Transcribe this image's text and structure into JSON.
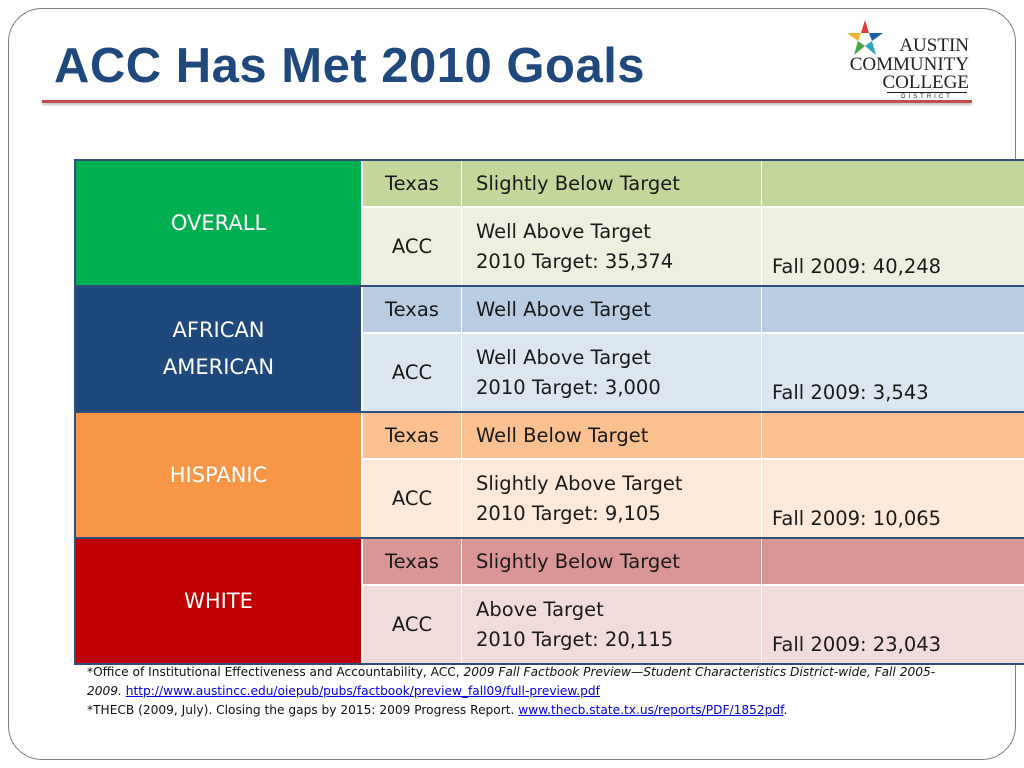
{
  "title": "ACC Has Met 2010 Goals",
  "logo": {
    "line1": "AUSTIN",
    "line2": "COMMUNITY",
    "line3": "COLLEGE",
    "line4": "DISTRICT",
    "colors": {
      "star_red": "#e03a3e",
      "star_blue": "#1f5fa8",
      "star_teal": "#2aa6b8",
      "star_green": "#4aa84a",
      "star_gold": "#f2b233"
    }
  },
  "table": {
    "groups": [
      {
        "category": "OVERALL",
        "category_color": "#00b050",
        "texas_bg": "#c4d79b",
        "acc_bg": "#ebf1de",
        "texas": {
          "kind": "Texas",
          "status": "Slightly Below Target",
          "fall": ""
        },
        "acc": {
          "kind": "ACC",
          "status": "Well Above Target",
          "target": "2010 Target: 35,374",
          "fall": "Fall 2009: 40,248"
        }
      },
      {
        "category": "AFRICAN AMERICAN",
        "category_color": "#1f497d",
        "texas_bg": "#b8cce4",
        "acc_bg": "#dce6f1",
        "texas": {
          "kind": "Texas",
          "status": "Well Above Target",
          "fall": ""
        },
        "acc": {
          "kind": "ACC",
          "status": "Well Above Target",
          "target": "2010 Target: 3,000",
          "fall": "Fall 2009: 3,543"
        }
      },
      {
        "category": "HISPANIC",
        "category_color": "#f79646",
        "texas_bg": "#fac090",
        "acc_bg": "#fde9d9",
        "texas": {
          "kind": "Texas",
          "status": "Well Below Target",
          "fall": ""
        },
        "acc": {
          "kind": "ACC",
          "status": "Slightly Above Target",
          "target": "2010 Target: 9,105",
          "fall": "Fall 2009: 10,065"
        }
      },
      {
        "category": "WHITE",
        "category_color": "#c00000",
        "texas_bg": "#da9694",
        "acc_bg": "#f2dcdb",
        "texas": {
          "kind": "Texas",
          "status": "Slightly Below Target",
          "fall": ""
        },
        "acc": {
          "kind": "ACC",
          "status": "Above Target",
          "target": "2010 Target: 20,115",
          "fall": "Fall 2009: 23,043"
        }
      }
    ]
  },
  "footnotes": {
    "note1_prefix": "*Office of Institutional Effectiveness and Accountability, ACC, ",
    "note1_italic": "2009 Fall Factbook Preview—Student Characteristics District-wide, Fall 2005-2009.",
    "note1_link": "http://www.austincc.edu/oiepub/pubs/factbook/preview_fall09/full-preview.pdf",
    "note2_prefix": "*THECB (2009, July). Closing the gaps by 2015: 2009 Progress Report. ",
    "note2_link": "www.thecb.state.tx.us/reports/PDF/1852pdf",
    "note2_suffix": "."
  }
}
